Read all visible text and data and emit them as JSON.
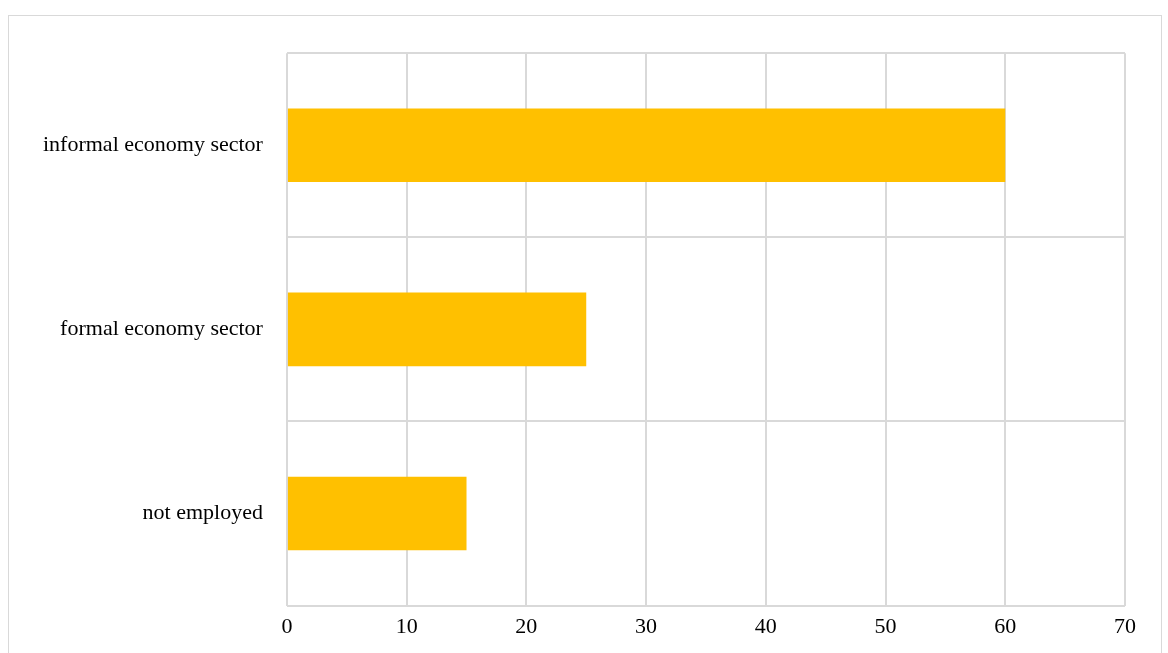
{
  "chart_data": {
    "type": "bar",
    "orientation": "horizontal",
    "categories": [
      "informal economy sector",
      "formal economy sector",
      "not employed"
    ],
    "values": [
      60,
      25,
      15
    ],
    "color": "#ffc000",
    "xlim": [
      0,
      70
    ],
    "xticks": [
      0,
      10,
      20,
      30,
      40,
      50,
      60,
      70
    ],
    "grid": true,
    "legend": false
  }
}
